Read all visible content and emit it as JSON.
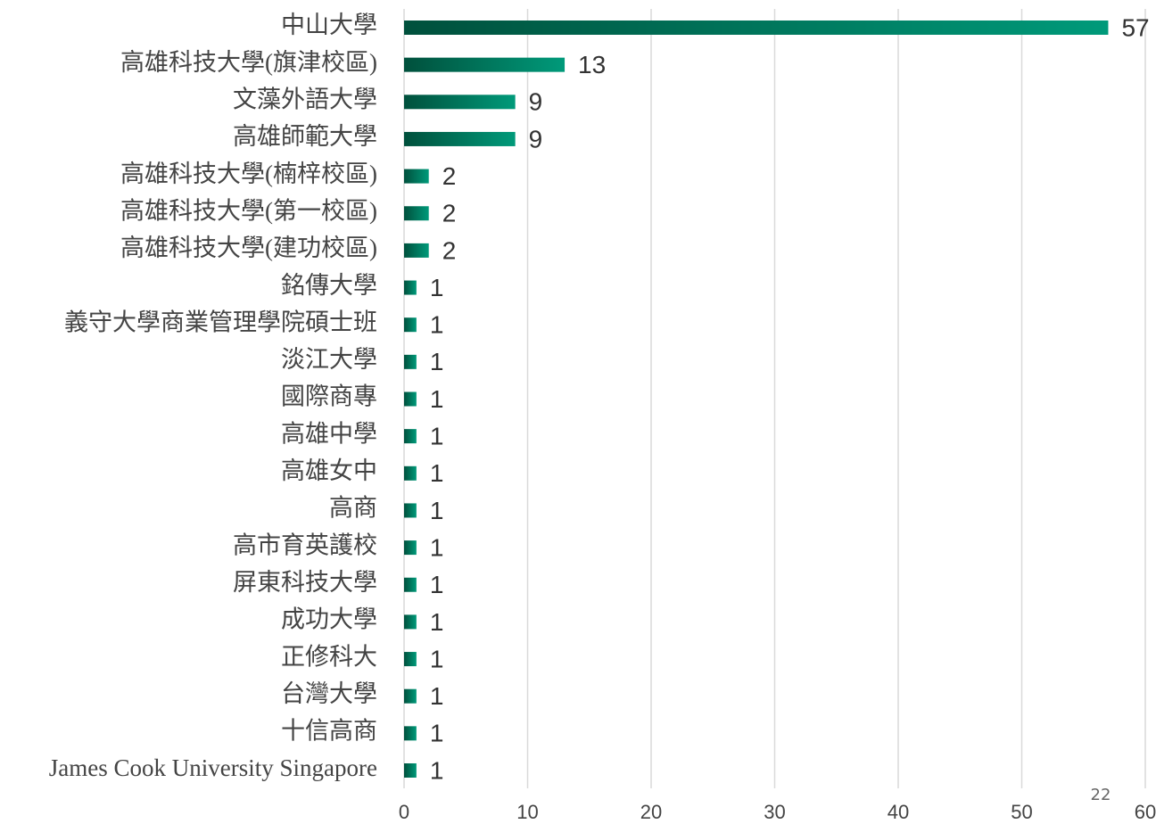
{
  "chart_data": {
    "type": "barh",
    "categories": [
      "中山大學",
      "高雄科技大學(旗津校區)",
      "文藻外語大學",
      "高雄師範大學",
      "高雄科技大學(楠梓校區)",
      "高雄科技大學(第一校區)",
      "高雄科技大學(建功校區)",
      "銘傳大學",
      "義守大學商業管理學院碩士班",
      "淡江大學",
      "國際商專",
      "高雄中學",
      "高雄女中",
      "高商",
      "高市育英護校",
      "屏東科技大學",
      "成功大學",
      "正修科大",
      "台灣大學",
      "十信高商",
      "James Cook University Singapore"
    ],
    "values": [
      57,
      13,
      9,
      9,
      2,
      2,
      2,
      1,
      1,
      1,
      1,
      1,
      1,
      1,
      1,
      1,
      1,
      1,
      1,
      1,
      1
    ],
    "gradient": [
      "#00503c",
      "#009a7a"
    ],
    "xlim": [
      0,
      60
    ],
    "xticks": [
      0,
      10,
      20,
      30,
      40,
      50,
      60
    ],
    "grid": true,
    "page_number": "22"
  }
}
